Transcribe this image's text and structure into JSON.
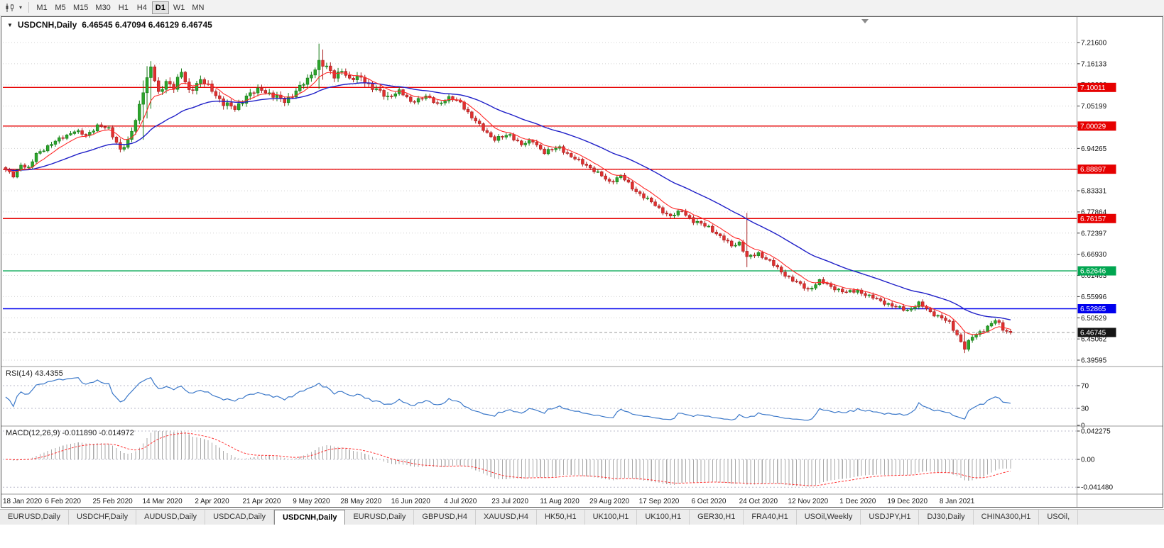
{
  "toolbar": {
    "timeframes": [
      "M1",
      "M5",
      "M15",
      "M30",
      "H1",
      "H4",
      "D1",
      "W1",
      "MN"
    ],
    "active_timeframe": "D1"
  },
  "icons": {
    "symbol_dropdown": "▼",
    "toolbar_caret": "▾"
  },
  "chart_data": {
    "type": "candlestick",
    "symbol": "USDCNH",
    "timeframe": "Daily",
    "title": "USDCNH,Daily",
    "ohlc": {
      "open": 6.46545,
      "high": 6.47094,
      "low": 6.46129,
      "close": 6.46745
    },
    "ohlc_text": "6.46545 6.47094 6.46129 6.46745",
    "price_axis": {
      "top_value": 7.216,
      "bottom_value": 6.39595,
      "tick_labels": [
        "7.21600",
        "7.16133",
        "7.10666",
        "7.05199",
        "6.99732",
        "6.94265",
        "6.88798",
        "6.83331",
        "6.77864",
        "6.72397",
        "6.66930",
        "6.61463",
        "6.55996",
        "6.50529",
        "6.45062",
        "6.39595"
      ]
    },
    "levels": [
      {
        "value": 7.10011,
        "label": "7.10011",
        "color": "#e60000",
        "kind": "resistance"
      },
      {
        "value": 7.00029,
        "label": "7.00029",
        "color": "#e60000",
        "kind": "resistance"
      },
      {
        "value": 6.88897,
        "label": "6.88897",
        "color": "#e60000",
        "kind": "resistance"
      },
      {
        "value": 6.76157,
        "label": "6.76157",
        "color": "#e60000",
        "kind": "resistance"
      },
      {
        "value": 6.62646,
        "label": "6.62646",
        "color": "#00a650",
        "kind": "support"
      },
      {
        "value": 6.52865,
        "label": "6.52865",
        "color": "#0000ee",
        "kind": "support"
      }
    ],
    "current_price": {
      "value": 6.46745,
      "label": "6.46745",
      "badge_color": "#151515"
    },
    "x_labels": [
      "18 Jan 2020",
      "6 Feb 2020",
      "25 Feb 2020",
      "14 Mar 2020",
      "2 Apr 2020",
      "21 Apr 2020",
      "9 May 2020",
      "28 May 2020",
      "16 Jun 2020",
      "4 Jul 2020",
      "23 Jul 2020",
      "11 Aug 2020",
      "29 Aug 2020",
      "17 Sep 2020",
      "6 Oct 2020",
      "24 Oct 2020",
      "12 Nov 2020",
      "1 Dec 2020",
      "19 Dec 2020",
      "8 Jan 2021"
    ],
    "bars_total": 264,
    "close_path_anchors": [
      [
        0,
        6.885
      ],
      [
        2,
        6.872
      ],
      [
        4,
        6.902
      ],
      [
        6,
        6.89
      ],
      [
        8,
        6.928
      ],
      [
        11,
        6.948
      ],
      [
        15,
        6.972
      ],
      [
        18,
        6.988
      ],
      [
        21,
        6.975
      ],
      [
        24,
        7.002
      ],
      [
        27,
        6.992
      ],
      [
        30,
        6.942
      ],
      [
        32,
        6.958
      ],
      [
        34,
        7.015
      ],
      [
        36,
        7.095
      ],
      [
        38,
        7.152
      ],
      [
        40,
        7.082
      ],
      [
        42,
        7.118
      ],
      [
        44,
        7.1
      ],
      [
        46,
        7.138
      ],
      [
        48,
        7.092
      ],
      [
        51,
        7.118
      ],
      [
        54,
        7.094
      ],
      [
        57,
        7.058
      ],
      [
        60,
        7.045
      ],
      [
        63,
        7.078
      ],
      [
        67,
        7.096
      ],
      [
        70,
        7.079
      ],
      [
        73,
        7.064
      ],
      [
        76,
        7.092
      ],
      [
        79,
        7.118
      ],
      [
        82,
        7.168
      ],
      [
        84,
        7.15
      ],
      [
        86,
        7.128
      ],
      [
        88,
        7.148
      ],
      [
        90,
        7.118
      ],
      [
        93,
        7.128
      ],
      [
        96,
        7.098
      ],
      [
        100,
        7.076
      ],
      [
        103,
        7.09
      ],
      [
        106,
        7.064
      ],
      [
        110,
        7.076
      ],
      [
        113,
        7.058
      ],
      [
        116,
        7.072
      ],
      [
        119,
        7.062
      ],
      [
        122,
        7.022
      ],
      [
        125,
        6.992
      ],
      [
        128,
        6.966
      ],
      [
        132,
        6.978
      ],
      [
        135,
        6.952
      ],
      [
        138,
        6.962
      ],
      [
        141,
        6.932
      ],
      [
        145,
        6.946
      ],
      [
        148,
        6.92
      ],
      [
        152,
        6.9
      ],
      [
        155,
        6.878
      ],
      [
        158,
        6.856
      ],
      [
        161,
        6.872
      ],
      [
        164,
        6.84
      ],
      [
        167,
        6.818
      ],
      [
        171,
        6.788
      ],
      [
        174,
        6.766
      ],
      [
        177,
        6.782
      ],
      [
        180,
        6.754
      ],
      [
        184,
        6.74
      ],
      [
        187,
        6.714
      ],
      [
        190,
        6.692
      ],
      [
        192,
        6.7
      ],
      [
        194,
        6.66
      ],
      [
        197,
        6.672
      ],
      [
        200,
        6.65
      ],
      [
        203,
        6.624
      ],
      [
        206,
        6.602
      ],
      [
        210,
        6.578
      ],
      [
        213,
        6.6
      ],
      [
        216,
        6.586
      ],
      [
        220,
        6.57
      ],
      [
        223,
        6.576
      ],
      [
        226,
        6.56
      ],
      [
        230,
        6.545
      ],
      [
        233,
        6.532
      ],
      [
        236,
        6.525
      ],
      [
        239,
        6.542
      ],
      [
        242,
        6.52
      ],
      [
        245,
        6.505
      ],
      [
        247,
        6.49
      ],
      [
        249,
        6.462
      ],
      [
        251,
        6.428
      ],
      [
        253,
        6.455
      ],
      [
        255,
        6.468
      ],
      [
        257,
        6.483
      ],
      [
        259,
        6.498
      ],
      [
        261,
        6.476
      ],
      [
        263,
        6.4675
      ]
    ],
    "wide_range_bars": [
      {
        "i": 36,
        "h": 7.118,
        "l": 6.965
      },
      {
        "i": 37,
        "h": 7.155,
        "l": 7.02
      },
      {
        "i": 38,
        "h": 7.168,
        "l": 7.045
      },
      {
        "i": 82,
        "h": 7.213,
        "l": 7.096
      },
      {
        "i": 83,
        "h": 7.198,
        "l": 7.12
      },
      {
        "i": 194,
        "h": 6.776,
        "l": 6.636
      },
      {
        "i": 251,
        "h": 6.472,
        "l": 6.414
      }
    ],
    "moving_averages": [
      {
        "name": "fast",
        "period": 8,
        "color": "#ff2a2a"
      },
      {
        "name": "slow",
        "period": 33,
        "color": "#2020c8"
      }
    ],
    "rsi": {
      "label": "RSI(14) 43.4355",
      "period": 14,
      "value": 43.4355,
      "line_color": "#3b78c9",
      "axis_labels": [
        {
          "v": 70,
          "label": "70"
        },
        {
          "v": 30,
          "label": "30"
        },
        {
          "v": 0,
          "label": "0"
        }
      ]
    },
    "macd": {
      "label": "MACD(12,26,9) -0.011890 -0.014972",
      "fast": 12,
      "slow": 26,
      "signal": 9,
      "macd_value": -0.01189,
      "signal_value": -0.014972,
      "hist_color": "#a8a8a8",
      "signal_color": "#ff3333",
      "axis_labels": [
        {
          "v": 0.042275,
          "label": "0.042275"
        },
        {
          "v": 0,
          "label": "0.00"
        },
        {
          "v": -0.04148,
          "label": "-0.041480"
        }
      ]
    }
  },
  "colors": {
    "up_fill": "#2ca52c",
    "up_stroke": "#157a15",
    "down_fill": "#e03030",
    "down_stroke": "#a81f1f",
    "grid": "#d0d0d0",
    "frame": "#4d4d4d",
    "pane_separator": "#9a9a9a",
    "indicator_level": "#b8b8c8",
    "axis_text": "#111111",
    "bid_line": "#999999"
  },
  "tabs": {
    "items": [
      "EURUSD,Daily",
      "USDCHF,Daily",
      "AUDUSD,Daily",
      "USDCAD,Daily",
      "USDCNH,Daily",
      "EURUSD,Daily",
      "GBPUSD,H4",
      "XAUUSD,H4",
      "HK50,H1",
      "UK100,H1",
      "UK100,H1",
      "GER30,H1",
      "FRA40,H1",
      "USOil,Weekly",
      "USDJPY,H1",
      "DJ30,Daily",
      "CHINA300,H1",
      "USOil,"
    ],
    "active_index": 4
  }
}
